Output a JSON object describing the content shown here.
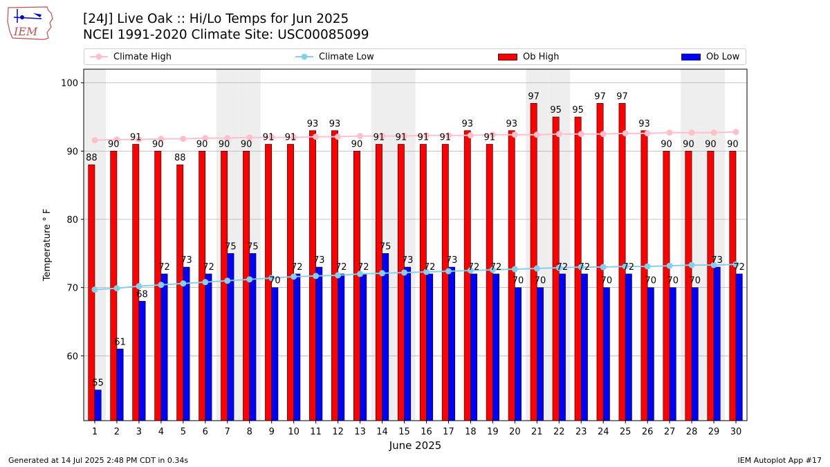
{
  "header": {
    "title_line1": "[24J] Live Oak :: Hi/Lo Temps for Jun 2025",
    "title_line2": "NCEI 1991-2020 Climate Site: USC00085099",
    "logo_text": "IEM"
  },
  "legend": {
    "items": [
      {
        "label": "Climate High",
        "kind": "line",
        "color": "#ffc0cb"
      },
      {
        "label": "Climate Low",
        "kind": "line",
        "color": "#87ceeb"
      },
      {
        "label": "Ob High",
        "kind": "bar",
        "color": "#ff0000"
      },
      {
        "label": "Ob Low",
        "kind": "bar",
        "color": "#0000ff"
      }
    ]
  },
  "footer": {
    "generated": "Generated at 14 Jul 2025 2:48 PM CDT in 0.34s",
    "app": "IEM Autoplot App #17"
  },
  "colors": {
    "ob_high": "#ff0000",
    "ob_low": "#0000ff",
    "climate_high": "#ffc0cb",
    "climate_low": "#87ceeb",
    "weekend_shading": "#eeeeee",
    "grid": "#b0b0b0"
  },
  "chart_data": {
    "type": "bar",
    "title": "[24J] Live Oak :: Hi/Lo Temps for Jun 2025",
    "subtitle": "NCEI 1991-2020 Climate Site: USC00085099",
    "xlabel": "June 2025",
    "ylabel": "Temperature ° F",
    "ylim": [
      50.5,
      102
    ],
    "yticks": [
      60,
      70,
      80,
      90,
      100
    ],
    "grid": "horizontal",
    "legend_position": "top",
    "categories": [
      "1",
      "2",
      "3",
      "4",
      "5",
      "6",
      "7",
      "8",
      "9",
      "10",
      "11",
      "12",
      "13",
      "14",
      "15",
      "16",
      "17",
      "18",
      "19",
      "20",
      "21",
      "22",
      "23",
      "24",
      "25",
      "26",
      "27",
      "28",
      "29",
      "30"
    ],
    "series": [
      {
        "name": "Ob High",
        "kind": "bar",
        "values": [
          88,
          90,
          91,
          90,
          88,
          90,
          90,
          90,
          91,
          91,
          93,
          93,
          90,
          91,
          91,
          91,
          91,
          93,
          91,
          93,
          97,
          95,
          95,
          97,
          97,
          93,
          90,
          90,
          90,
          90
        ]
      },
      {
        "name": "Ob Low",
        "kind": "bar",
        "values": [
          55,
          61,
          68,
          72,
          73,
          72,
          75,
          75,
          70,
          72,
          73,
          72,
          72,
          75,
          73,
          72,
          73,
          72,
          72,
          70,
          70,
          72,
          72,
          70,
          72,
          70,
          70,
          70,
          73,
          72
        ]
      },
      {
        "name": "Climate High",
        "kind": "line",
        "values": [
          91.6,
          91.7,
          91.7,
          91.8,
          91.8,
          91.9,
          91.9,
          92.0,
          92.0,
          92.0,
          92.1,
          92.1,
          92.2,
          92.2,
          92.2,
          92.3,
          92.3,
          92.3,
          92.4,
          92.4,
          92.4,
          92.5,
          92.5,
          92.5,
          92.6,
          92.6,
          92.7,
          92.7,
          92.7,
          92.8
        ]
      },
      {
        "name": "Climate Low",
        "kind": "line",
        "values": [
          69.7,
          69.9,
          70.2,
          70.4,
          70.6,
          70.8,
          71.0,
          71.2,
          71.4,
          71.6,
          71.7,
          71.8,
          72.0,
          72.1,
          72.2,
          72.3,
          72.4,
          72.5,
          72.6,
          72.7,
          72.8,
          72.9,
          73.0,
          73.0,
          73.1,
          73.1,
          73.2,
          73.3,
          73.3,
          73.4
        ]
      }
    ],
    "shaded_days": [
      1,
      7,
      8,
      14,
      15,
      21,
      22,
      28,
      29
    ]
  }
}
